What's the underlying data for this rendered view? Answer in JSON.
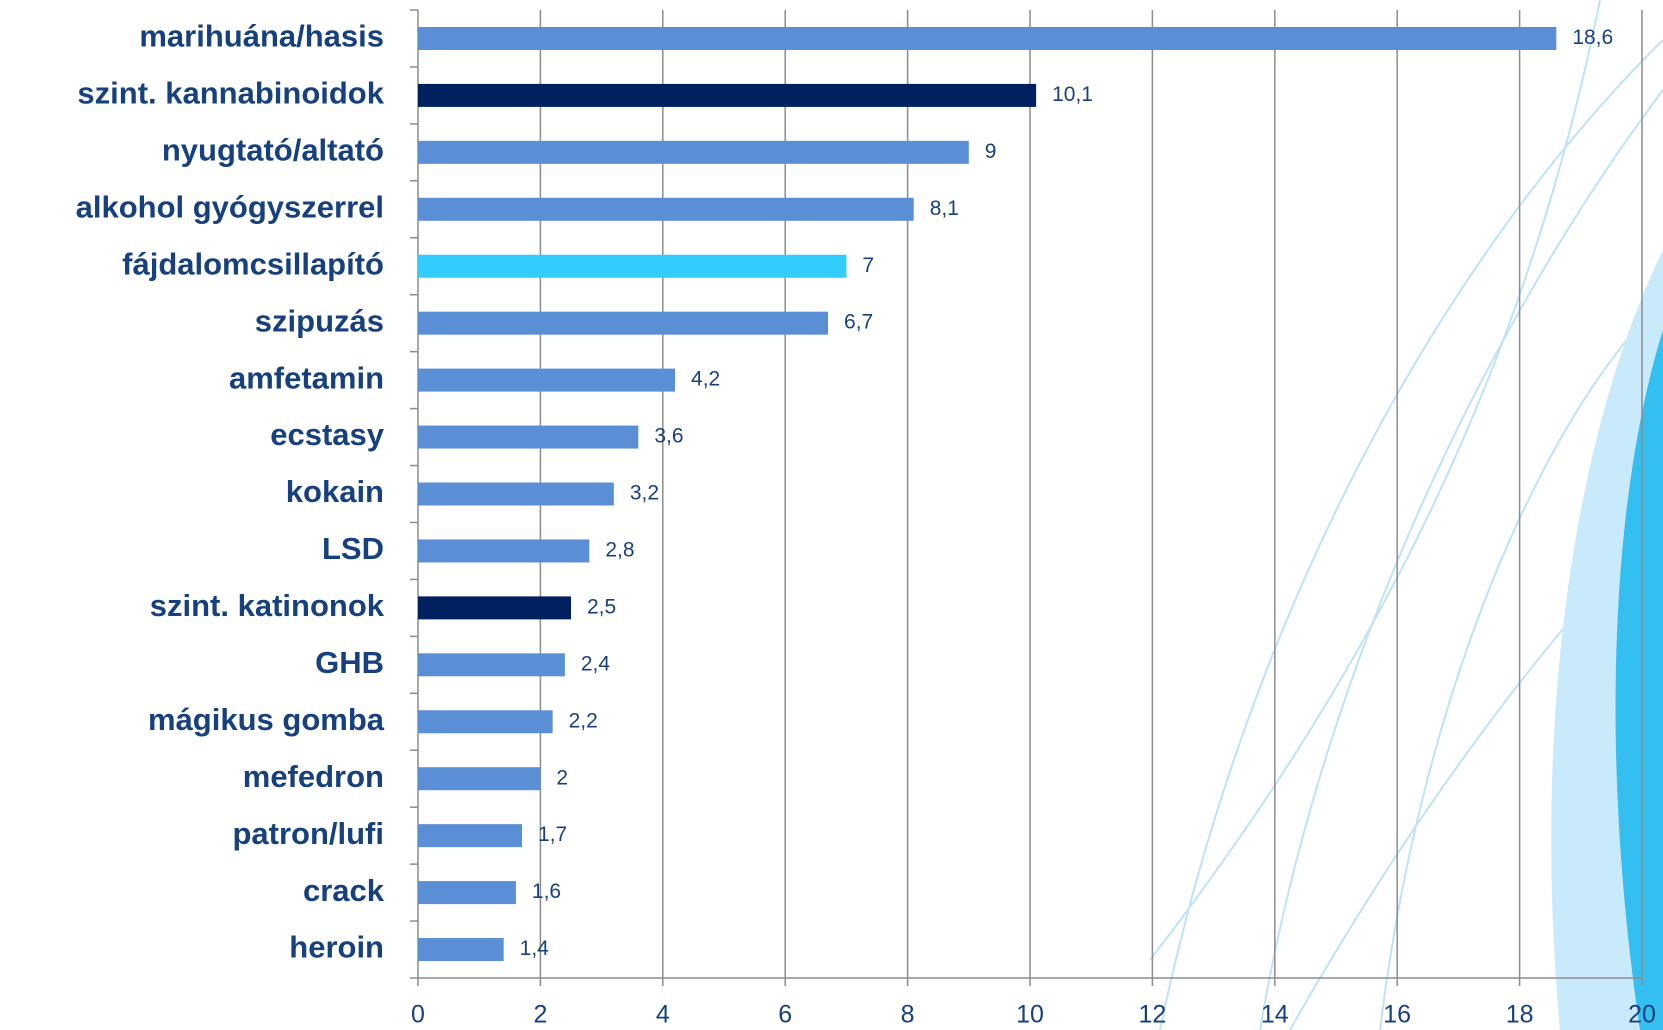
{
  "chart_data": {
    "type": "hbar",
    "categories": [
      "marihuána/hasis",
      "szint. kannabinoidok",
      "nyugtató/altató",
      "alkohol gyógyszerrel",
      "fájdalomcsillapító",
      "szipuzás",
      "amfetamin",
      "ecstasy",
      "kokain",
      "LSD",
      "szint. katinonok",
      "GHB",
      "mágikus gomba",
      "mefedron",
      "patron/lufi",
      "crack",
      "heroin"
    ],
    "values": [
      18.6,
      10.1,
      9,
      8.1,
      7,
      6.7,
      4.2,
      3.6,
      3.2,
      2.8,
      2.5,
      2.4,
      2.2,
      2,
      1.7,
      1.6,
      1.4
    ],
    "value_labels": [
      "18,6",
      "10,1",
      "9",
      "8,1",
      "7",
      "6,7",
      "4,2",
      "3,6",
      "3,2",
      "2,8",
      "2,5",
      "2,4",
      "2,2",
      "2",
      "1,7",
      "1,6",
      "1,4"
    ],
    "colors": [
      "#5a8fd6",
      "#002060",
      "#5a8fd6",
      "#5a8fd6",
      "#33ccff",
      "#5a8fd6",
      "#5a8fd6",
      "#5a8fd6",
      "#5a8fd6",
      "#5a8fd6",
      "#002060",
      "#5a8fd6",
      "#5a8fd6",
      "#5a8fd6",
      "#5a8fd6",
      "#5a8fd6",
      "#5a8fd6"
    ],
    "xlim": [
      0,
      20
    ],
    "xticks": [
      0,
      2,
      4,
      6,
      8,
      10,
      12,
      14,
      16,
      18,
      20
    ],
    "grid": true
  }
}
